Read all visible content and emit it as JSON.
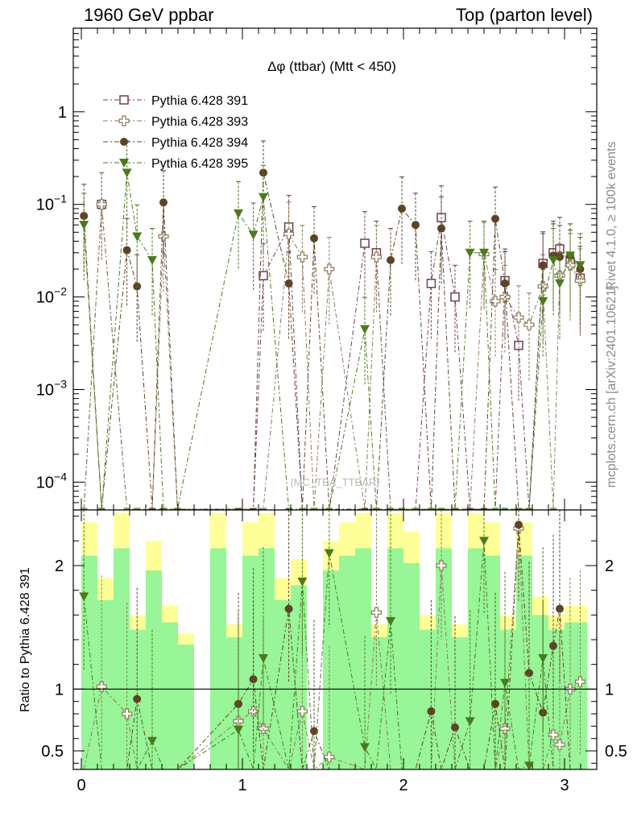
{
  "header": {
    "left": "1960 GeV ppbar",
    "right": "Top (parton level)",
    "plot_title": "Δφ (ttbar) (Mtt < 450)",
    "side_rivet": "Rivet 4.1.0, ≥ 100k events",
    "side_mcplots": "mcplots.cern.ch [arXiv:2401.10621]",
    "watermark": "(MC_TBA_TTBAR)"
  },
  "colors": {
    "s391": "#6e3f56",
    "s393": "#8a7a58",
    "s394": "#5e4426",
    "s395": "#4a7a1c",
    "band_outer": "#ffff99",
    "band_inner": "#98f598"
  },
  "chart_data": [
    {
      "type": "scatter",
      "title": "Δφ (ttbar) (Mtt < 450)",
      "xlabel": "",
      "ylabel": "",
      "xlim": [
        -0.05,
        3.2
      ],
      "ylim": [
        5e-05,
        8
      ],
      "yscale": "log",
      "x_ticks": [
        "0",
        "1",
        "2",
        "3"
      ],
      "y_ticks": [
        "10^-4",
        "10^-3",
        "10^-2",
        "10^-1",
        "1"
      ],
      "legend": [
        "Pythia 6.428 391",
        "Pythia 6.428 393",
        "Pythia 6.428 394",
        "Pythia 6.428 395"
      ],
      "legend_position": "top-left",
      "x": [
        0.016,
        0.126,
        0.283,
        0.346,
        0.44,
        0.51,
        0.597,
        0.975,
        1.068,
        1.13,
        1.288,
        1.372,
        1.445,
        1.539,
        1.76,
        1.832,
        1.92,
        1.99,
        2.075,
        2.172,
        2.235,
        2.32,
        2.413,
        2.5,
        2.57,
        2.63,
        2.715,
        2.78,
        2.866,
        2.93,
        2.97,
        3.035,
        3.097
      ],
      "series": [
        {
          "name": "Pythia 6.428 391",
          "marker": "open-square",
          "values": [
            null,
            0.1,
            null,
            null,
            null,
            null,
            null,
            null,
            null,
            0.017,
            0.057,
            null,
            null,
            null,
            0.038,
            0.03,
            null,
            null,
            null,
            0.014,
            0.072,
            0.01,
            null,
            null,
            null,
            0.015,
            0.003,
            null,
            0.023,
            0.03,
            0.033,
            0.024,
            0.016
          ]
        },
        {
          "name": "Pythia 6.428 393",
          "marker": "open-cross",
          "values": [
            null,
            0.1,
            null,
            null,
            null,
            0.045,
            null,
            null,
            null,
            null,
            0.048,
            0.027,
            null,
            0.02,
            null,
            0.027,
            null,
            null,
            null,
            null,
            null,
            null,
            null,
            0.029,
            0.009,
            0.01,
            0.006,
            0.005,
            0.013,
            null,
            0.017,
            0.022,
            0.015
          ]
        },
        {
          "name": "Pythia 6.428 394",
          "marker": "filled-circle",
          "values": [
            0.075,
            null,
            0.032,
            0.013,
            null,
            0.105,
            null,
            null,
            null,
            0.22,
            0.014,
            null,
            0.043,
            null,
            null,
            null,
            0.025,
            0.09,
            0.06,
            null,
            0.055,
            null,
            null,
            null,
            0.07,
            0.014,
            null,
            null,
            0.022,
            0.028,
            0.027,
            0.028,
            0.02
          ]
        },
        {
          "name": "Pythia 6.428 395",
          "marker": "filled-triangle-down",
          "values": [
            0.06,
            null,
            0.22,
            0.045,
            0.025,
            null,
            null,
            0.08,
            0.047,
            0.12,
            null,
            null,
            null,
            null,
            0.0045,
            null,
            null,
            null,
            null,
            null,
            null,
            null,
            0.03,
            0.03,
            null,
            null,
            null,
            null,
            0.009,
            0.025,
            0.014,
            0.028,
            0.022
          ]
        }
      ]
    },
    {
      "type": "scatter",
      "title": "",
      "xlabel": "",
      "ylabel": "Ratio to Pythia 6.428 391",
      "xlim": [
        -0.05,
        3.2
      ],
      "ylim": [
        0.35,
        2.45
      ],
      "x_ticks": [
        "0",
        "1",
        "2",
        "3"
      ],
      "y_ticks": [
        "0.5",
        "1",
        "2"
      ],
      "reference_line": 1,
      "x": [
        0.016,
        0.126,
        0.283,
        0.346,
        0.44,
        0.51,
        0.597,
        0.975,
        1.068,
        1.13,
        1.288,
        1.372,
        1.445,
        1.539,
        1.76,
        1.832,
        1.92,
        1.99,
        2.075,
        2.172,
        2.235,
        2.32,
        2.413,
        2.5,
        2.57,
        2.63,
        2.715,
        2.78,
        2.866,
        2.93,
        2.97,
        3.035,
        3.097
      ],
      "series": [
        {
          "name": "Pythia 6.428 393",
          "marker": "open-cross",
          "values": [
            null,
            1.02,
            0.8,
            null,
            null,
            null,
            null,
            0.74,
            0.82,
            0.68,
            null,
            0.82,
            null,
            0.45,
            null,
            1.62,
            null,
            null,
            null,
            null,
            2.0,
            null,
            null,
            null,
            null,
            0.68,
            2.3,
            null,
            null,
            0.63,
            0.55,
            1.0,
            1.06
          ]
        },
        {
          "name": "Pythia 6.428 394",
          "marker": "filled-circle",
          "values": [
            null,
            null,
            null,
            0.92,
            null,
            null,
            null,
            0.88,
            1.08,
            null,
            1.65,
            null,
            0.66,
            null,
            null,
            null,
            null,
            null,
            null,
            0.82,
            null,
            0.69,
            null,
            null,
            0.88,
            null,
            2.33,
            1.13,
            0.81,
            1.35,
            1.65,
            null,
            null
          ]
        },
        {
          "name": "Pythia 6.428 395",
          "marker": "filled-triangle-down",
          "values": [
            1.75,
            null,
            null,
            null,
            0.58,
            null,
            null,
            0.67,
            null,
            1.25,
            null,
            1.87,
            null,
            2.1,
            0.53,
            null,
            1.55,
            null,
            null,
            null,
            null,
            null,
            0.74,
            2.2,
            null,
            1.05,
            null,
            0.38,
            1.25,
            null,
            null,
            null,
            null
          ]
        }
      ]
    }
  ]
}
